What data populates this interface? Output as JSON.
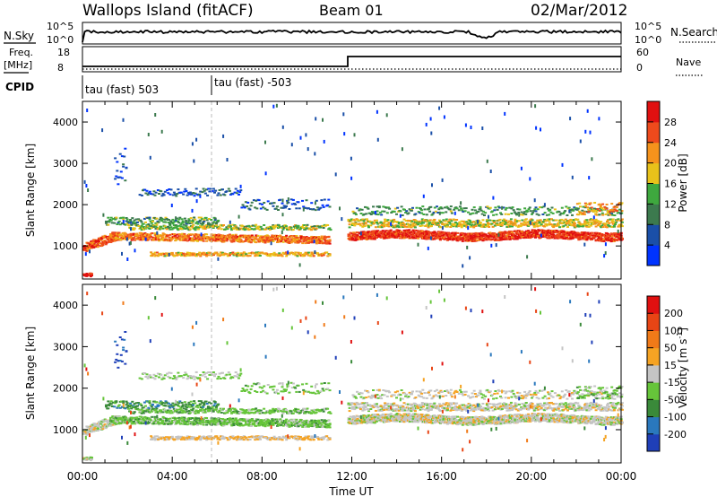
{
  "header": {
    "station": "Wallops Island (fitACF)",
    "beam": "Beam 01",
    "date": "02/Mar/2012"
  },
  "strip": {
    "nsky_label": "N.Sky",
    "nsky_ticks": [
      "10^5",
      "10^0"
    ],
    "nsearch_label": "N.Search",
    "nsearch_ticks": [
      "10^5",
      "10^0"
    ],
    "freq_label": "Freq.",
    "freq_unit": "[MHz]",
    "freq_ticks": [
      18,
      8
    ],
    "nave_label": "Nave",
    "nave_ticks": [
      60,
      0
    ],
    "cpid_label": "CPID",
    "cpid_entries": [
      "tau (fast) 503",
      "tau (fast) -503"
    ]
  },
  "chart_data": [
    {
      "type": "heatmap",
      "name": "power",
      "ylabel": "Slant Range [km]",
      "yticks": [
        1000,
        2000,
        3000,
        4000
      ],
      "ylim": [
        200,
        4500
      ],
      "xlim": [
        0,
        24
      ],
      "colorbar": {
        "label": "Power [dB]",
        "ticks": [
          4,
          8,
          12,
          16,
          20,
          24,
          28
        ],
        "colors": [
          "#0033ff",
          "#1a4fa8",
          "#3c7a4e",
          "#3ea83e",
          "#e8c21a",
          "#f5931c",
          "#ee4a1c",
          "#e01010"
        ]
      }
    },
    {
      "type": "heatmap",
      "name": "velocity",
      "xlabel": "Time UT",
      "ylabel": "Slant Range [km]",
      "yticks": [
        1000,
        2000,
        3000,
        4000
      ],
      "ylim": [
        200,
        4500
      ],
      "xlim": [
        0,
        24
      ],
      "xticks": [
        "00:00",
        "04:00",
        "08:00",
        "12:00",
        "16:00",
        "20:00",
        "00:00"
      ],
      "colorbar": {
        "label": "Velocity [m s",
        "label_exp": "-1",
        "label_close": "]",
        "ticks": [
          200,
          100,
          50,
          15,
          -15,
          -50,
          -100,
          -200
        ],
        "colors": [
          "#1f3fb8",
          "#2a78bd",
          "#3a8a3a",
          "#66c53a",
          "#c4c4c4",
          "#f5a323",
          "#f07a18",
          "#e84515",
          "#e01010"
        ]
      }
    }
  ]
}
